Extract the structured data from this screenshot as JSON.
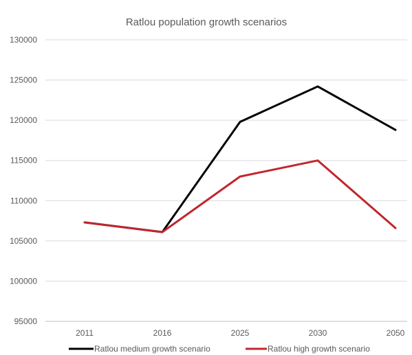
{
  "chart_data": {
    "type": "line",
    "title": "Ratlou population growth scenarios",
    "xlabel": "",
    "ylabel": "",
    "categories": [
      "2011",
      "2016",
      "2025",
      "2030",
      "2050"
    ],
    "ylim": [
      95000,
      130000
    ],
    "y_ticks": [
      95000,
      100000,
      105000,
      110000,
      115000,
      120000,
      125000,
      130000
    ],
    "y_tick_labels": [
      "95000",
      "100000",
      "105000",
      "110000",
      "115000",
      "120000",
      "125000",
      "130000"
    ],
    "grid": true,
    "legend_position": "bottom",
    "series": [
      {
        "name": "Ratlou medium growth scenario",
        "color": "#000000",
        "values": [
          107300,
          106100,
          119800,
          124200,
          118800
        ]
      },
      {
        "name": "Ratlou high growth scenario",
        "color": "#c0262d",
        "values": [
          107300,
          106100,
          113000,
          115000,
          106600
        ]
      }
    ]
  }
}
